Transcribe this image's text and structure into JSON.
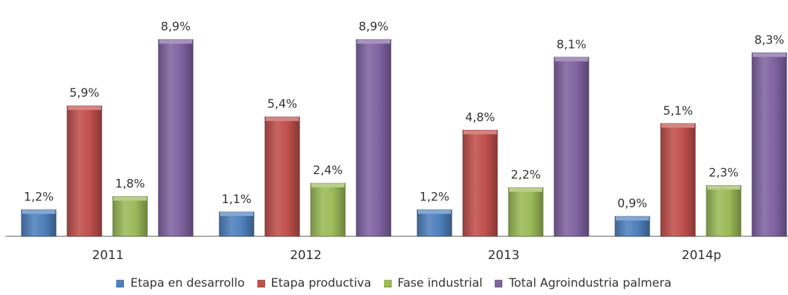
{
  "chart_data": {
    "type": "bar",
    "title": "",
    "xlabel": "",
    "ylabel": "",
    "categories": [
      "2011",
      "2012",
      "2013",
      "2014p"
    ],
    "ylim": [
      0,
      10
    ],
    "grid": false,
    "legend_position": "bottom",
    "series": [
      {
        "name": "Etapa en desarrollo",
        "color": "#4f81bd",
        "values": [
          1.2,
          1.1,
          1.2,
          0.9
        ],
        "labels": [
          "1,2%",
          "1,1%",
          "1,2%",
          "0,9%"
        ]
      },
      {
        "name": "Etapa productiva",
        "color": "#c0504d",
        "values": [
          5.9,
          5.4,
          4.8,
          5.1
        ],
        "labels": [
          "5,9%",
          "5,4%",
          "4,8%",
          "5,1%"
        ]
      },
      {
        "name": "Fase industrial",
        "color": "#9bbb59",
        "values": [
          1.8,
          2.4,
          2.2,
          2.3
        ],
        "labels": [
          "1,8%",
          "2,4%",
          "2,2%",
          "2,3%"
        ]
      },
      {
        "name": "Total Agroindustria palmera",
        "color": "#8064a2",
        "values": [
          8.9,
          8.9,
          8.1,
          8.3
        ],
        "labels": [
          "8,9%",
          "8,9%",
          "8,1%",
          "8,3%"
        ]
      }
    ]
  }
}
